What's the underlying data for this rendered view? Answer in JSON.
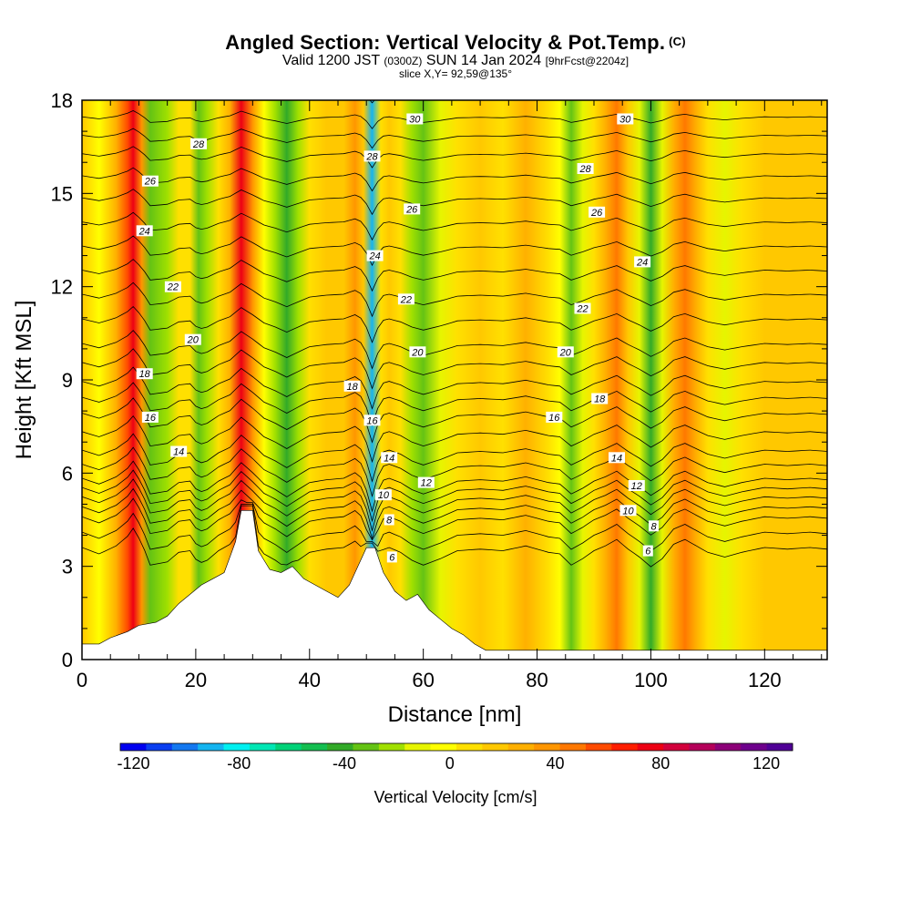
{
  "title": {
    "main": "Angled Section: Vertical Velocity & Pot.Temp.",
    "copyright": "(C)",
    "valid_prefix": "Valid 1200 JST",
    "valid_utc": "(0300Z)",
    "valid_date": "SUN 14 Jan 2024",
    "forecast": "[9hrFcst@2204z]",
    "slice": "slice X,Y= 92,59@135°"
  },
  "chart_data": {
    "type": "heatmap",
    "xlabel": "Distance [nm]",
    "ylabel": "Height [Kft MSL]",
    "xlim": [
      0,
      131
    ],
    "ylim": [
      0,
      18
    ],
    "xticks": [
      0,
      20,
      40,
      60,
      80,
      100,
      120
    ],
    "yticks": [
      0,
      3,
      6,
      9,
      12,
      15,
      18
    ],
    "colorbar": {
      "label": "Vertical Velocity [cm/s]",
      "ticks": [
        -120,
        -80,
        -40,
        0,
        40,
        80,
        120
      ],
      "min": -125,
      "max": 130,
      "colors": [
        "#0000f0",
        "#0a3ef0",
        "#1478f0",
        "#14b4f0",
        "#00f0f0",
        "#00e6b4",
        "#00d278",
        "#14be50",
        "#32aa28",
        "#64c314",
        "#a0e000",
        "#e6f500",
        "#ffff00",
        "#ffe000",
        "#ffc800",
        "#ffb000",
        "#ff9600",
        "#ff7800",
        "#ff4b00",
        "#ff1e00",
        "#ed0014",
        "#d2003c",
        "#b4005a",
        "#8c0078",
        "#6e008c",
        "#500096"
      ]
    },
    "columns": [
      {
        "x": 0,
        "w": 20
      },
      {
        "x": 3,
        "w": 0
      },
      {
        "x": 6,
        "w": 25
      },
      {
        "x": 8,
        "w": 55
      },
      {
        "x": 9,
        "w": 80
      },
      {
        "x": 10.5,
        "w": 35
      },
      {
        "x": 12,
        "w": -35
      },
      {
        "x": 15,
        "w": -25
      },
      {
        "x": 17,
        "w": 5
      },
      {
        "x": 19,
        "w": 10
      },
      {
        "x": 20.5,
        "w": -30
      },
      {
        "x": 22,
        "w": -20
      },
      {
        "x": 24,
        "w": 10
      },
      {
        "x": 26,
        "w": 30
      },
      {
        "x": 28,
        "w": 75
      },
      {
        "x": 30,
        "w": 40
      },
      {
        "x": 32,
        "w": 0
      },
      {
        "x": 34,
        "w": -20
      },
      {
        "x": 36,
        "w": -45
      },
      {
        "x": 38,
        "w": -20
      },
      {
        "x": 40,
        "w": 5
      },
      {
        "x": 43,
        "w": 15
      },
      {
        "x": 46,
        "w": 20
      },
      {
        "x": 48,
        "w": 40
      },
      {
        "x": 49.5,
        "w": 15
      },
      {
        "x": 51,
        "w": -95
      },
      {
        "x": 52.5,
        "w": 10
      },
      {
        "x": 54,
        "w": 20
      },
      {
        "x": 56,
        "w": 5
      },
      {
        "x": 58,
        "w": -20
      },
      {
        "x": 60,
        "w": -35
      },
      {
        "x": 63,
        "w": -15
      },
      {
        "x": 66,
        "w": 10
      },
      {
        "x": 70,
        "w": 15
      },
      {
        "x": 74,
        "w": 10
      },
      {
        "x": 78,
        "w": 25
      },
      {
        "x": 82,
        "w": 5
      },
      {
        "x": 84,
        "w": 0
      },
      {
        "x": 86,
        "w": -35
      },
      {
        "x": 88,
        "w": -15
      },
      {
        "x": 90,
        "w": 10
      },
      {
        "x": 92,
        "w": 25
      },
      {
        "x": 94,
        "w": 45
      },
      {
        "x": 96,
        "w": 15
      },
      {
        "x": 98,
        "w": -10
      },
      {
        "x": 100,
        "w": -40
      },
      {
        "x": 102,
        "w": -15
      },
      {
        "x": 104,
        "w": 30
      },
      {
        "x": 106,
        "w": 45
      },
      {
        "x": 108,
        "w": 25
      },
      {
        "x": 110,
        "w": 5
      },
      {
        "x": 113,
        "w": -10
      },
      {
        "x": 116,
        "w": 5
      },
      {
        "x": 120,
        "w": 20
      },
      {
        "x": 124,
        "w": 15
      },
      {
        "x": 128,
        "w": 20
      },
      {
        "x": 131,
        "w": 15
      }
    ],
    "terrain": [
      [
        0,
        0.5
      ],
      [
        3,
        0.5
      ],
      [
        5,
        0.7
      ],
      [
        8,
        0.9
      ],
      [
        10,
        1.1
      ],
      [
        13,
        1.2
      ],
      [
        15,
        1.4
      ],
      [
        17,
        1.8
      ],
      [
        19,
        2.1
      ],
      [
        21,
        2.4
      ],
      [
        23,
        2.6
      ],
      [
        25,
        2.8
      ],
      [
        27,
        3.8
      ],
      [
        28,
        4.8
      ],
      [
        30,
        4.8
      ],
      [
        31,
        3.5
      ],
      [
        33,
        2.9
      ],
      [
        35,
        2.8
      ],
      [
        37,
        3.0
      ],
      [
        39,
        2.6
      ],
      [
        41,
        2.4
      ],
      [
        43,
        2.2
      ],
      [
        45,
        2.0
      ],
      [
        47,
        2.4
      ],
      [
        48.5,
        3.0
      ],
      [
        50,
        3.6
      ],
      [
        51.5,
        3.6
      ],
      [
        53,
        2.8
      ],
      [
        55,
        2.2
      ],
      [
        57,
        1.9
      ],
      [
        59,
        2.1
      ],
      [
        61,
        1.6
      ],
      [
        63,
        1.3
      ],
      [
        65,
        1.0
      ],
      [
        67,
        0.8
      ],
      [
        69,
        0.5
      ],
      [
        71,
        0.3
      ],
      [
        75,
        0.3
      ],
      [
        131,
        0.3
      ]
    ],
    "contour_labels": [
      {
        "x": 58.5,
        "y": 17.4,
        "text": "30"
      },
      {
        "x": 95.5,
        "y": 17.4,
        "text": "30"
      },
      {
        "x": 20.5,
        "y": 16.6,
        "text": "28"
      },
      {
        "x": 51,
        "y": 16.2,
        "text": "28"
      },
      {
        "x": 88.5,
        "y": 15.8,
        "text": "28"
      },
      {
        "x": 12,
        "y": 15.4,
        "text": "26"
      },
      {
        "x": 58,
        "y": 14.5,
        "text": "26"
      },
      {
        "x": 90.5,
        "y": 14.4,
        "text": "26"
      },
      {
        "x": 11,
        "y": 13.8,
        "text": "24"
      },
      {
        "x": 51.5,
        "y": 13.0,
        "text": "24"
      },
      {
        "x": 98.5,
        "y": 12.8,
        "text": "24"
      },
      {
        "x": 16,
        "y": 12.0,
        "text": "22"
      },
      {
        "x": 57,
        "y": 11.6,
        "text": "22"
      },
      {
        "x": 88,
        "y": 11.3,
        "text": "22"
      },
      {
        "x": 19.5,
        "y": 10.3,
        "text": "20"
      },
      {
        "x": 59,
        "y": 9.9,
        "text": "20"
      },
      {
        "x": 85,
        "y": 9.9,
        "text": "20"
      },
      {
        "x": 11,
        "y": 9.2,
        "text": "18"
      },
      {
        "x": 47.5,
        "y": 8.8,
        "text": "18"
      },
      {
        "x": 91,
        "y": 8.4,
        "text": "18"
      },
      {
        "x": 12,
        "y": 7.8,
        "text": "16"
      },
      {
        "x": 51,
        "y": 7.7,
        "text": "16"
      },
      {
        "x": 83,
        "y": 7.8,
        "text": "16"
      },
      {
        "x": 17,
        "y": 6.7,
        "text": "14"
      },
      {
        "x": 54,
        "y": 6.5,
        "text": "14"
      },
      {
        "x": 94,
        "y": 6.5,
        "text": "14"
      },
      {
        "x": 60.5,
        "y": 5.7,
        "text": "12"
      },
      {
        "x": 97.5,
        "y": 5.6,
        "text": "12"
      },
      {
        "x": 53,
        "y": 5.3,
        "text": "10"
      },
      {
        "x": 96,
        "y": 4.8,
        "text": "10"
      },
      {
        "x": 54,
        "y": 4.5,
        "text": "8"
      },
      {
        "x": 100.5,
        "y": 4.3,
        "text": "8"
      },
      {
        "x": 54.5,
        "y": 3.3,
        "text": "6"
      },
      {
        "x": 99.5,
        "y": 3.5,
        "text": "6"
      }
    ]
  }
}
